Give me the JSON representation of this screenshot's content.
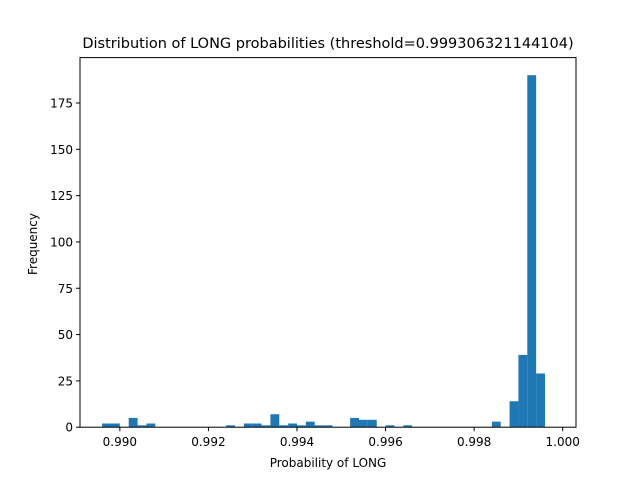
{
  "chart_data": {
    "type": "bar",
    "title": "Distribution of LONG probabilities (threshold=0.999306321144104)",
    "xlabel": "Probability of LONG",
    "ylabel": "Frequency",
    "xlim": [
      0.9891,
      1.0003
    ],
    "ylim": [
      0,
      199.5
    ],
    "xticks": [
      0.99,
      0.992,
      0.994,
      0.996,
      0.998,
      1.0
    ],
    "xtick_labels": [
      "0.990",
      "0.992",
      "0.994",
      "0.996",
      "0.998",
      "1.000"
    ],
    "yticks": [
      0,
      25,
      50,
      75,
      100,
      125,
      150,
      175
    ],
    "ytick_labels": [
      "0",
      "25",
      "50",
      "75",
      "100",
      "125",
      "150",
      "175"
    ],
    "grid": false,
    "bar_color": "#1f77b4",
    "bin_start": 0.9896,
    "bin_width": 0.0002,
    "counts": [
      2,
      2,
      0,
      5,
      1,
      2,
      0,
      0,
      0,
      0,
      0,
      0,
      0,
      0,
      1,
      0,
      2,
      2,
      1,
      7,
      1,
      2,
      1,
      3,
      1,
      1,
      0,
      0,
      5,
      4,
      4,
      0,
      1,
      0,
      1,
      0,
      0,
      0,
      0,
      0,
      0,
      0,
      0,
      0,
      3,
      0,
      14,
      39,
      190,
      29
    ]
  }
}
